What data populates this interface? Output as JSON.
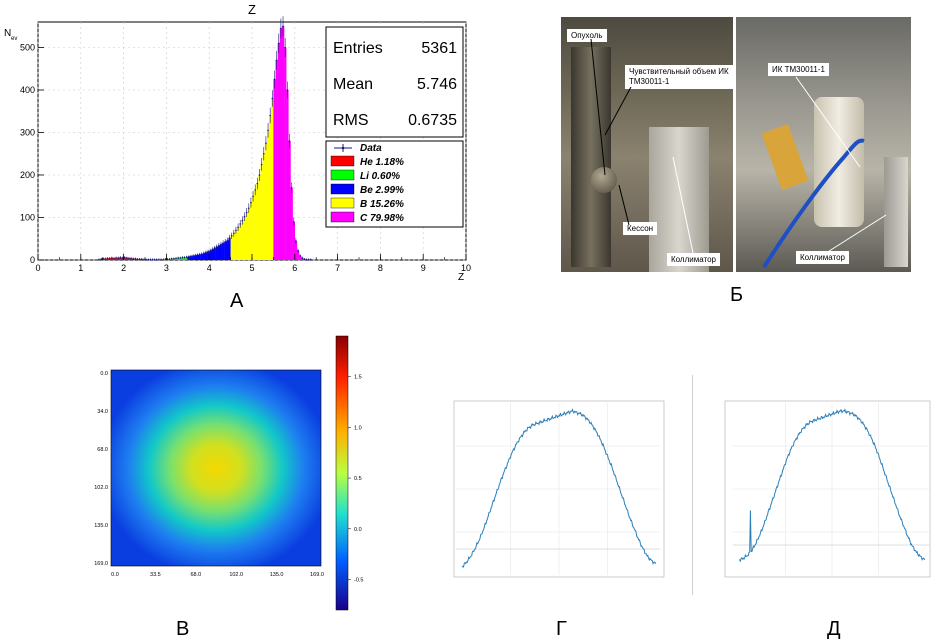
{
  "panel_labels": {
    "a": "А",
    "b": "Б",
    "c": "В",
    "d": "Г",
    "e": "Д"
  },
  "chart_data": [
    {
      "type": "bar",
      "panel": "А",
      "title": "Z",
      "xlabel": "Z",
      "ylabel": "N",
      "ylabel_sub": "ev",
      "xlim": [
        0,
        10
      ],
      "ylim": [
        0,
        560
      ],
      "xticks": [
        0,
        1,
        2,
        3,
        4,
        5,
        6,
        7,
        8,
        9,
        10
      ],
      "yticks": [
        0,
        100,
        200,
        300,
        400,
        500
      ],
      "stats": [
        {
          "label": "Entries",
          "value": "5361"
        },
        {
          "label": "Mean",
          "value": "5.746"
        },
        {
          "label": "RMS",
          "value": "0.6735"
        }
      ],
      "legend": {
        "data_label": "Data",
        "entries": [
          {
            "name": "He",
            "percent": "1.18%",
            "color": "#ff0000",
            "range": [
              1.4,
              2.5
            ]
          },
          {
            "name": "Li",
            "percent": "0.60%",
            "color": "#00ff00",
            "range": [
              2.5,
              3.5
            ]
          },
          {
            "name": "Be",
            "percent": "2.99%",
            "color": "#0000ff",
            "range": [
              3.5,
              4.5
            ]
          },
          {
            "name": "B",
            "percent": "15.26%",
            "color": "#ffff00",
            "range": [
              4.5,
              5.5
            ]
          },
          {
            "name": "C",
            "percent": "79.98%",
            "color": "#ff00ff",
            "range": [
              5.5,
              6.5
            ]
          }
        ]
      },
      "bin_width": 0.05,
      "bins_x": [
        1.4,
        1.45,
        1.5,
        1.55,
        1.6,
        1.65,
        1.7,
        1.75,
        1.8,
        1.85,
        1.9,
        1.95,
        2.0,
        2.05,
        2.1,
        2.15,
        2.2,
        2.25,
        2.3,
        2.35,
        2.4,
        2.45,
        2.5,
        2.55,
        2.6,
        2.65,
        2.7,
        2.75,
        2.8,
        2.85,
        2.9,
        2.95,
        3.0,
        3.05,
        3.1,
        3.15,
        3.2,
        3.25,
        3.3,
        3.35,
        3.4,
        3.45,
        3.5,
        3.55,
        3.6,
        3.65,
        3.7,
        3.75,
        3.8,
        3.85,
        3.9,
        3.95,
        4.0,
        4.05,
        4.1,
        4.15,
        4.2,
        4.25,
        4.3,
        4.35,
        4.4,
        4.45,
        4.5,
        4.55,
        4.6,
        4.65,
        4.7,
        4.75,
        4.8,
        4.85,
        4.9,
        4.95,
        5.0,
        5.05,
        5.1,
        5.15,
        5.2,
        5.25,
        5.3,
        5.35,
        5.4,
        5.45,
        5.5,
        5.55,
        5.6,
        5.65,
        5.7,
        5.75,
        5.8,
        5.85,
        5.9,
        5.95,
        6.0,
        6.05,
        6.1,
        6.15,
        6.2,
        6.25,
        6.3,
        6.35,
        6.4,
        6.45
      ],
      "bins_y": [
        1,
        2,
        3,
        3,
        4,
        4,
        5,
        4,
        5,
        5,
        6,
        5,
        6,
        5,
        4,
        4,
        3,
        3,
        2,
        2,
        2,
        1,
        1,
        1,
        1,
        1,
        1,
        1,
        1,
        1,
        1,
        2,
        2,
        2,
        3,
        3,
        4,
        5,
        5,
        6,
        6,
        7,
        8,
        9,
        10,
        11,
        12,
        13,
        14,
        16,
        18,
        20,
        22,
        25,
        28,
        31,
        34,
        37,
        40,
        43,
        46,
        52,
        57,
        63,
        70,
        77,
        85,
        93,
        102,
        112,
        122,
        135,
        150,
        165,
        180,
        200,
        225,
        250,
        275,
        305,
        340,
        380,
        425,
        470,
        510,
        545,
        550,
        500,
        400,
        280,
        170,
        90,
        45,
        22,
        10,
        5,
        2,
        1,
        1,
        1,
        0,
        0,
        0,
        0,
        0,
        0
      ]
    },
    {
      "type": "heatmap",
      "panel": "В",
      "xticks": [
        "0.0",
        "33.5",
        "68.0",
        "102.0",
        "135.0",
        "169.0"
      ],
      "yticks": [
        "0.0",
        "34.0",
        "68.0",
        "102.0",
        "135.0",
        "169.0"
      ],
      "colorbar_ticks": [
        "1.5",
        "1.0",
        "0.5",
        "0.0",
        "-0.5"
      ],
      "colorbar_range": [
        -0.8,
        1.9
      ]
    },
    {
      "type": "line",
      "panel": "Г",
      "profile": [
        0.0,
        0.03,
        0.07,
        0.12,
        0.18,
        0.25,
        0.33,
        0.41,
        0.49,
        0.57,
        0.64,
        0.71,
        0.77,
        0.82,
        0.86,
        0.89,
        0.91,
        0.92,
        0.93,
        0.94,
        0.95,
        0.96,
        0.97,
        0.98,
        0.99,
        1.0,
        0.99,
        0.98,
        0.96,
        0.93,
        0.89,
        0.84,
        0.78,
        0.71,
        0.64,
        0.56,
        0.48,
        0.4,
        0.32,
        0.25,
        0.18,
        0.12,
        0.07,
        0.04,
        0.02
      ]
    },
    {
      "type": "line",
      "panel": "Д",
      "profile": [
        0.02,
        0.03,
        0.05,
        0.08,
        0.13,
        0.19,
        0.26,
        0.34,
        0.42,
        0.5,
        0.58,
        0.66,
        0.73,
        0.79,
        0.84,
        0.88,
        0.91,
        0.93,
        0.94,
        0.95,
        0.96,
        0.97,
        0.98,
        0.99,
        1.0,
        1.0,
        0.99,
        0.98,
        0.96,
        0.93,
        0.89,
        0.84,
        0.78,
        0.71,
        0.63,
        0.55,
        0.47,
        0.39,
        0.31,
        0.24,
        0.17,
        0.11,
        0.07,
        0.04,
        0.02
      ]
    }
  ],
  "photos": {
    "left_callouts": {
      "tumor": "Опухоль",
      "volume": "Чувствительный объем ИК ТМ30011-1",
      "caisson": "Кессон",
      "collimator": "Коллиматор"
    },
    "right_callouts": {
      "chamber": "ИК ТМ30011-1",
      "collimator": "Коллиматор"
    }
  }
}
